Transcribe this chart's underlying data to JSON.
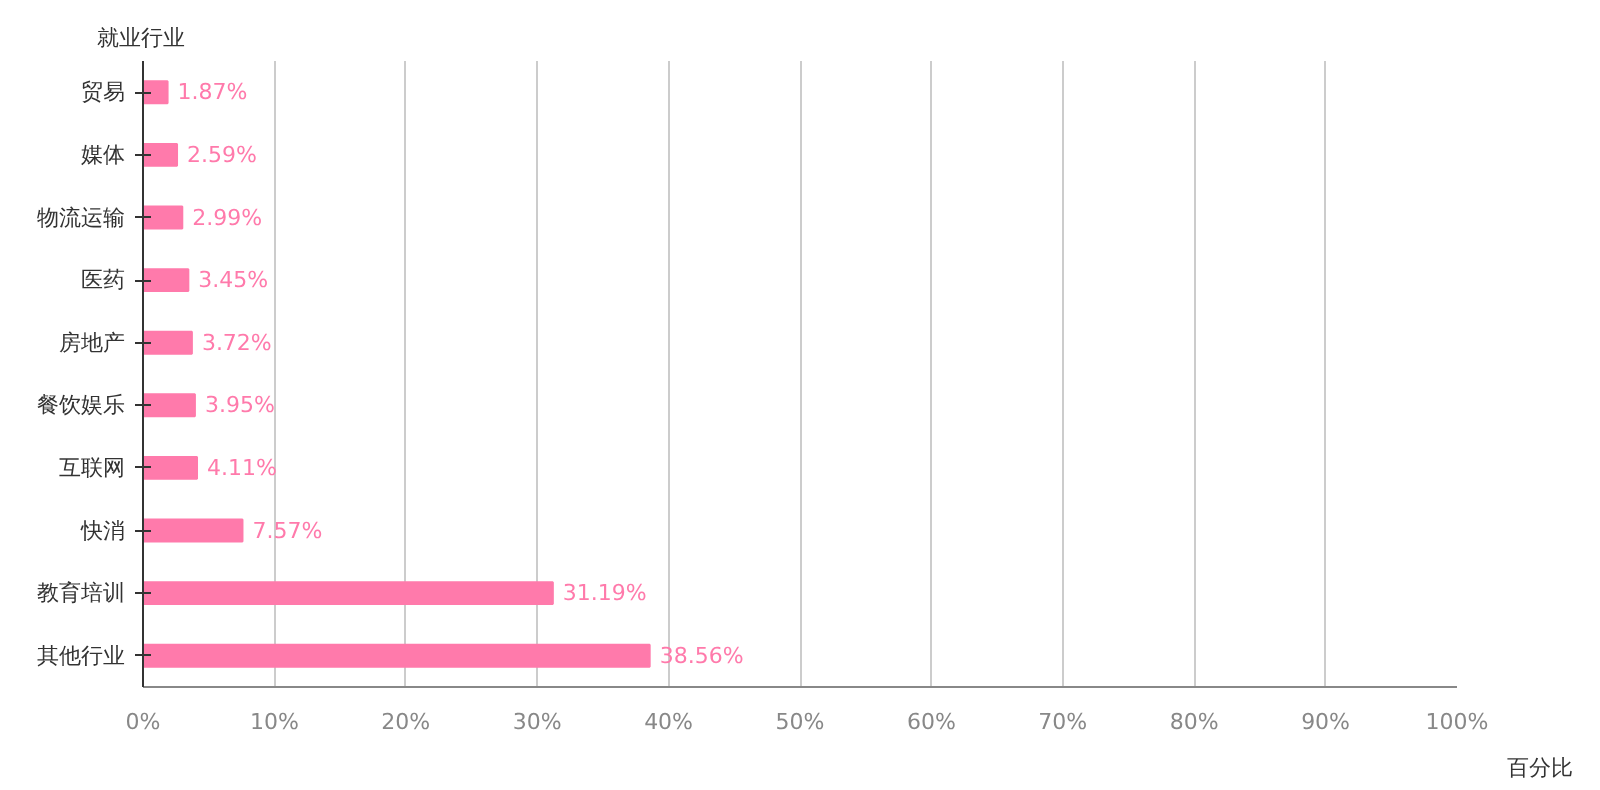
{
  "chart_data": {
    "type": "bar",
    "orientation": "horizontal",
    "ylabel": "就业行业",
    "xlabel": "百分比",
    "categories": [
      "贸易",
      "媒体",
      "物流运输",
      "医药",
      "房地产",
      "餐饮娱乐",
      "互联网",
      "快消",
      "教育培训",
      "其他行业"
    ],
    "values": [
      1.87,
      2.59,
      2.99,
      3.45,
      3.72,
      3.95,
      4.11,
      7.57,
      31.19,
      38.56
    ],
    "value_labels": [
      "1.87%",
      "2.59%",
      "2.99%",
      "3.45%",
      "3.72%",
      "3.95%",
      "4.11%",
      "7.57%",
      "31.19%",
      "38.56%"
    ],
    "color": "#ff7aab",
    "xlim": [
      0,
      100
    ],
    "xticks": [
      {
        "value": 0,
        "label": "0%"
      },
      {
        "value": 10,
        "label": "10%"
      },
      {
        "value": 20,
        "label": "20%"
      },
      {
        "value": 30,
        "label": "30%"
      },
      {
        "value": 40,
        "label": "40%"
      },
      {
        "value": 50,
        "label": "50%"
      },
      {
        "value": 60,
        "label": "60%"
      },
      {
        "value": 70,
        "label": "70%"
      },
      {
        "value": 80,
        "label": "80%"
      },
      {
        "value": 90,
        "label": "90%"
      },
      {
        "value": 100,
        "label": "100%"
      }
    ],
    "grid": "x"
  }
}
